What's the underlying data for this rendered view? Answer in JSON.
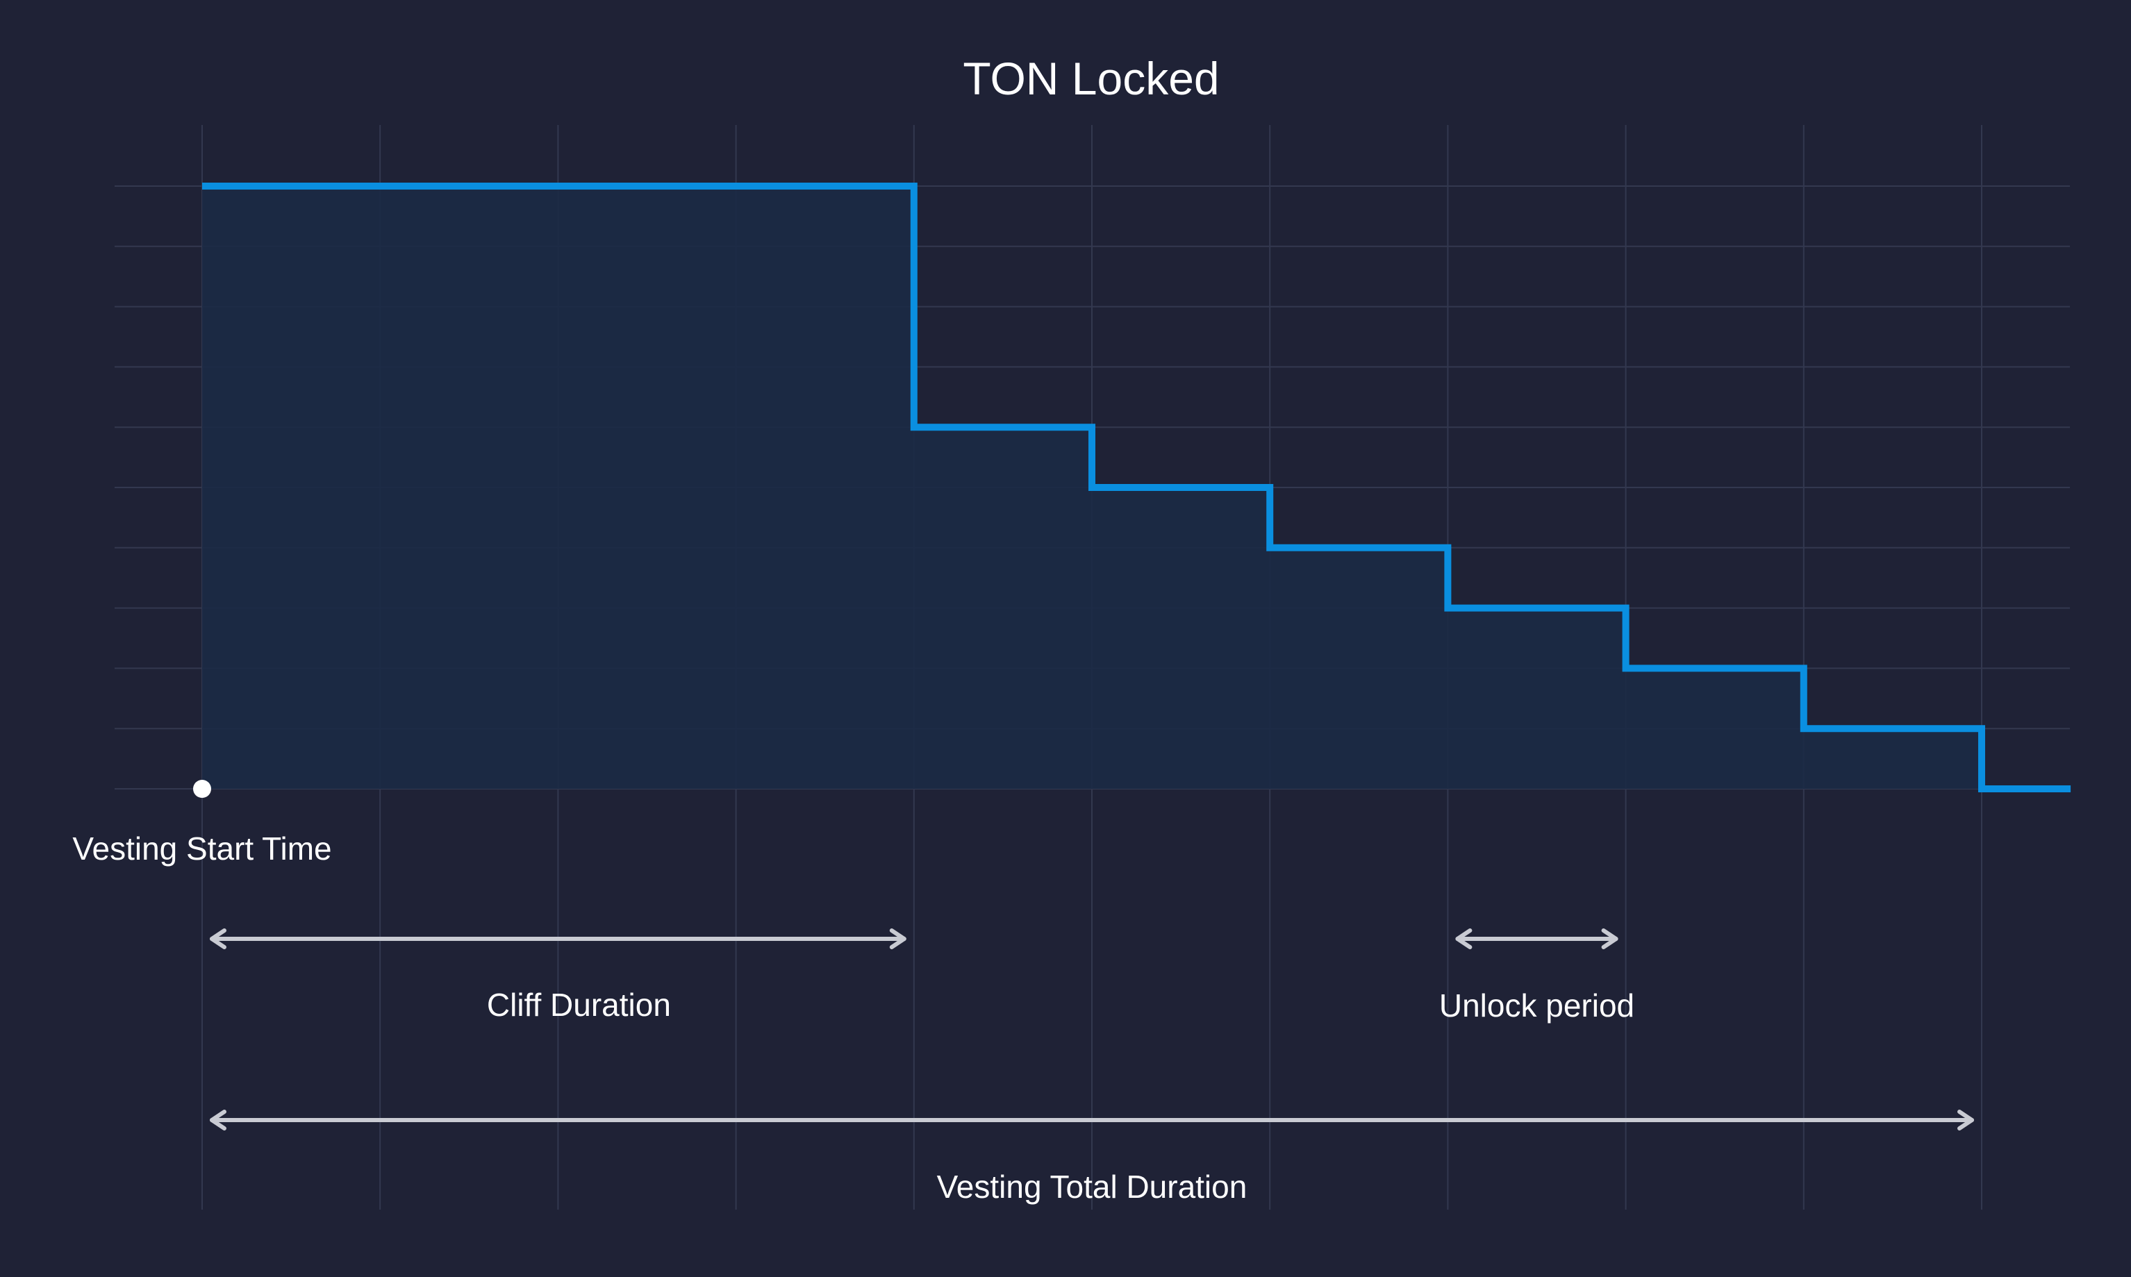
{
  "colors": {
    "background": "#1f2236",
    "grid": "#33384f",
    "step_line": "#0a8fe0",
    "fill": "#1b2a45",
    "annotation_arrow": "#c9cbd3",
    "text": "#ffffff",
    "start_marker": "#ffffff"
  },
  "chart_data": {
    "type": "line",
    "subtype": "step",
    "title": "TON Locked",
    "xlabel": "",
    "ylabel": "",
    "grid": true,
    "xlim": [
      -0.5,
      11
    ],
    "ylim": [
      0,
      10
    ],
    "series": [
      {
        "x": [
          0,
          4,
          4,
          5,
          5,
          6,
          6,
          7,
          7,
          8,
          8,
          9,
          9,
          10,
          10,
          10.5
        ],
        "values": [
          10,
          10,
          6,
          6,
          5,
          5,
          4,
          4,
          3,
          3,
          2,
          2,
          1,
          1,
          0,
          0
        ]
      }
    ],
    "start_marker": {
      "x": 0,
      "y": 0,
      "label": "Vesting Start Time"
    },
    "annotations": [
      {
        "label": "Cliff Duration",
        "x_from": 0,
        "x_to": 4
      },
      {
        "label": "Unlock period",
        "x_from": 7,
        "x_to": 8
      },
      {
        "label": "Vesting Total Duration",
        "x_from": 0,
        "x_to": 10
      }
    ]
  }
}
